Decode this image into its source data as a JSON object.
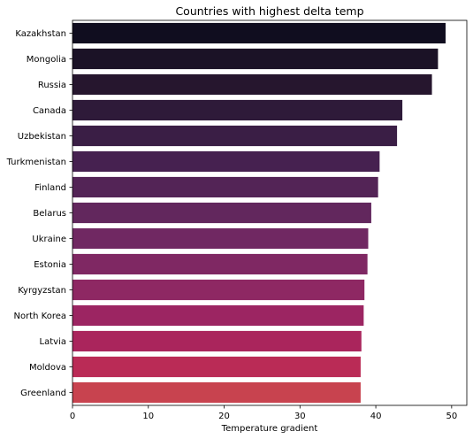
{
  "chart_data": {
    "type": "bar",
    "orientation": "horizontal",
    "title": "Countries with highest delta temp",
    "xlabel": "Temperature gradient",
    "ylabel": "",
    "xlim": [
      0,
      52
    ],
    "xticks": [
      0,
      10,
      20,
      30,
      40,
      50
    ],
    "grid": false,
    "categories": [
      "Kazakhstan",
      "Mongolia",
      "Russia",
      "Canada",
      "Uzbekistan",
      "Turkmenistan",
      "Finland",
      "Belarus",
      "Ukraine",
      "Estonia",
      "Kyrgyzstan",
      "North Korea",
      "Latvia",
      "Moldova",
      "Greenland"
    ],
    "values": [
      49.2,
      48.2,
      47.4,
      43.5,
      42.8,
      40.5,
      40.3,
      39.4,
      39.0,
      38.9,
      38.5,
      38.4,
      38.1,
      38.0,
      38.0
    ],
    "colors": [
      "#100d1f",
      "#1b1226",
      "#26162e",
      "#2e1a39",
      "#3a1e45",
      "#462150",
      "#532456",
      "#62275d",
      "#702862",
      "#7f2863",
      "#8e2863",
      "#9c2562",
      "#aa255c",
      "#ba2b56",
      "#c8434f"
    ]
  }
}
